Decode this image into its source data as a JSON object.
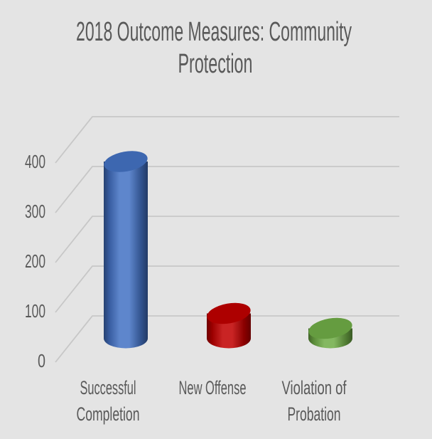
{
  "title": {
    "line1": "2018 Outcome Measures:  Community",
    "line2": "Protection"
  },
  "y_axis": {
    "ticks": [
      "400",
      "300",
      "200",
      "100",
      "0"
    ]
  },
  "x_axis": {
    "labels": [
      {
        "line1": "Successful",
        "line2": "Completion"
      },
      {
        "line1": "New Offense",
        "line2": ""
      },
      {
        "line1": "Violation of",
        "line2": "Probation"
      }
    ]
  },
  "colors": {
    "background": "#e4e4e4",
    "text": "#595959",
    "gridline": "#c7c7c7"
  },
  "chart_data": {
    "type": "bar",
    "subtype": "3d-cylinder",
    "title": "2018 Outcome Measures:  Community Protection",
    "categories": [
      "Successful Completion",
      "New Offense",
      "Violation of Probation"
    ],
    "values": [
      355,
      50,
      20
    ],
    "series_colors": [
      "#4472c4",
      "#c00000",
      "#70ad47"
    ],
    "xlabel": "",
    "ylabel": "",
    "ylim": [
      0,
      400
    ],
    "ytick_interval": 100,
    "grid": true,
    "legend": false
  }
}
